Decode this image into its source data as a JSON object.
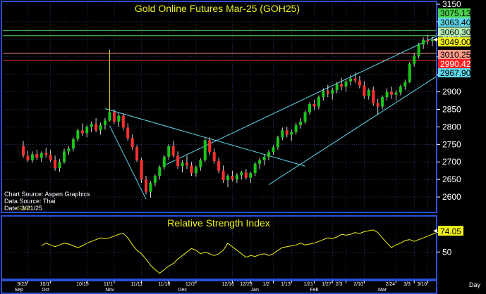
{
  "colors": {
    "background": "#000000",
    "frame": "#2a4fd6",
    "grid": "#3a4a8a",
    "up_candle": "#19c619",
    "down_candle": "#ff3030",
    "wick": "#d8d8d8",
    "channel": "#5fd7e8",
    "title": "#f2f21a",
    "axis_text": "#ffffff",
    "rsi_line": "#f2f21a",
    "spike": "#e8d830"
  },
  "chart_data": [
    {
      "type": "candlestick",
      "title": "Gold Online Futures Mar-25 (GOH25)",
      "ylim": [
        2560,
        3150
      ],
      "y_ticks": [
        2600,
        2650,
        2700,
        2750,
        2800,
        2850,
        2900,
        2950,
        3000,
        3050,
        3100,
        3150
      ],
      "x_ticks": [
        "9/23",
        "10/1",
        "10/15",
        "11/1",
        "11/11",
        "11/18",
        "12/2",
        "12/16",
        "12/23",
        "1/2",
        "1/13",
        "1/21",
        "1/27",
        "2/3",
        "2/10",
        "2/24",
        "3/3",
        "3/10"
      ],
      "month_labels": [
        "Sep",
        "Oct",
        "Nov",
        "Dec",
        "Jan",
        "Feb",
        "Mar"
      ],
      "x_axis_label": "Day",
      "levels": [
        {
          "label": "3075.13",
          "value": 3075.13,
          "line": "#4cd24c",
          "bg": "#4cd24c",
          "fg": "#000000"
        },
        {
          "label": "3063.40",
          "value": 3063.4,
          "line": "",
          "bg": "#5fd7e8",
          "fg": "#000000"
        },
        {
          "label": "3060.30",
          "value": 3060.3,
          "line": "#4cd24c",
          "bg": "#b8f0b8",
          "fg": "#000000"
        },
        {
          "label": "3049.00",
          "value": 3049.0,
          "line": "",
          "bg": "#f2f21a",
          "fg": "#000000"
        },
        {
          "label": "3010.25",
          "value": 3010.25,
          "line": "#ff9a8a",
          "bg": "#ff9a8a",
          "fg": "#000000"
        },
        {
          "label": "2990.42",
          "value": 2990.42,
          "line": "#ff3030",
          "bg": "#ff2020",
          "fg": "#ffffff"
        },
        {
          "label": "2967.90",
          "value": 2967.9,
          "line": "",
          "bg": "#5fd7e8",
          "fg": "#000000"
        }
      ],
      "source_notes": [
        "Chart Source: Aspen Graphics",
        "Data Source: Thai",
        "Date: 3/21/25"
      ],
      "watermark": "Gold",
      "candles": [
        [
          2745,
          2760,
          2712,
          2718
        ],
        [
          2718,
          2732,
          2700,
          2705
        ],
        [
          2705,
          2730,
          2698,
          2722
        ],
        [
          2722,
          2735,
          2705,
          2712
        ],
        [
          2712,
          2730,
          2700,
          2725
        ],
        [
          2725,
          2740,
          2712,
          2720
        ],
        [
          2720,
          2735,
          2700,
          2706
        ],
        [
          2706,
          2718,
          2675,
          2682
        ],
        [
          2682,
          2708,
          2672,
          2700
        ],
        [
          2700,
          2738,
          2695,
          2730
        ],
        [
          2730,
          2745,
          2720,
          2738
        ],
        [
          2738,
          2770,
          2730,
          2765
        ],
        [
          2765,
          2795,
          2758,
          2790
        ],
        [
          2790,
          2810,
          2775,
          2782
        ],
        [
          2782,
          2805,
          2770,
          2800
        ],
        [
          2800,
          2815,
          2785,
          2808
        ],
        [
          2808,
          2825,
          2785,
          2790
        ],
        [
          2790,
          2812,
          2778,
          2805
        ],
        [
          2805,
          2825,
          2792,
          2818
        ],
        [
          2818,
          3020,
          2815,
          2842
        ],
        [
          2842,
          2850,
          2808,
          2815
        ],
        [
          2815,
          2840,
          2800,
          2832
        ],
        [
          2832,
          2838,
          2790,
          2798
        ],
        [
          2798,
          2810,
          2760,
          2768
        ],
        [
          2768,
          2778,
          2735,
          2742
        ],
        [
          2742,
          2748,
          2700,
          2705
        ],
        [
          2705,
          2712,
          2640,
          2650
        ],
        [
          2650,
          2660,
          2608,
          2615
        ],
        [
          2615,
          2645,
          2598,
          2640
        ],
        [
          2640,
          2665,
          2630,
          2660
        ],
        [
          2660,
          2690,
          2650,
          2685
        ],
        [
          2685,
          2720,
          2678,
          2715
        ],
        [
          2715,
          2750,
          2705,
          2745
        ],
        [
          2745,
          2760,
          2712,
          2718
        ],
        [
          2718,
          2730,
          2680,
          2688
        ],
        [
          2688,
          2705,
          2670,
          2698
        ],
        [
          2698,
          2718,
          2680,
          2690
        ],
        [
          2690,
          2700,
          2660,
          2668
        ],
        [
          2668,
          2690,
          2658,
          2685
        ],
        [
          2685,
          2710,
          2675,
          2705
        ],
        [
          2705,
          2768,
          2700,
          2762
        ],
        [
          2762,
          2770,
          2720,
          2728
        ],
        [
          2728,
          2738,
          2695,
          2702
        ],
        [
          2702,
          2712,
          2668,
          2675
        ],
        [
          2675,
          2690,
          2640,
          2648
        ],
        [
          2648,
          2665,
          2628,
          2660
        ],
        [
          2660,
          2675,
          2645,
          2650
        ],
        [
          2650,
          2668,
          2640,
          2662
        ],
        [
          2662,
          2675,
          2650,
          2670
        ],
        [
          2670,
          2680,
          2650,
          2655
        ],
        [
          2655,
          2672,
          2640,
          2668
        ],
        [
          2668,
          2700,
          2660,
          2695
        ],
        [
          2695,
          2712,
          2680,
          2705
        ],
        [
          2705,
          2722,
          2690,
          2715
        ],
        [
          2715,
          2735,
          2705,
          2728
        ],
        [
          2728,
          2748,
          2720,
          2742
        ],
        [
          2742,
          2775,
          2735,
          2770
        ],
        [
          2770,
          2798,
          2762,
          2790
        ],
        [
          2790,
          2800,
          2770,
          2778
        ],
        [
          2778,
          2792,
          2760,
          2785
        ],
        [
          2785,
          2812,
          2778,
          2805
        ],
        [
          2805,
          2825,
          2795,
          2815
        ],
        [
          2815,
          2848,
          2808,
          2842
        ],
        [
          2842,
          2870,
          2835,
          2865
        ],
        [
          2865,
          2878,
          2848,
          2858
        ],
        [
          2858,
          2890,
          2850,
          2885
        ],
        [
          2885,
          2910,
          2875,
          2902
        ],
        [
          2902,
          2920,
          2885,
          2895
        ],
        [
          2895,
          2912,
          2878,
          2905
        ],
        [
          2905,
          2928,
          2896,
          2922
        ],
        [
          2922,
          2940,
          2905,
          2915
        ],
        [
          2915,
          2935,
          2900,
          2930
        ],
        [
          2930,
          2948,
          2918,
          2938
        ],
        [
          2938,
          2955,
          2925,
          2932
        ],
        [
          2932,
          2945,
          2910,
          2918
        ],
        [
          2918,
          2930,
          2880,
          2888
        ],
        [
          2888,
          2910,
          2878,
          2905
        ],
        [
          2905,
          2915,
          2860,
          2868
        ],
        [
          2868,
          2880,
          2835,
          2858
        ],
        [
          2858,
          2890,
          2850,
          2885
        ],
        [
          2885,
          2910,
          2875,
          2900
        ],
        [
          2900,
          2915,
          2880,
          2892
        ],
        [
          2892,
          2905,
          2875,
          2898
        ],
        [
          2898,
          2920,
          2890,
          2915
        ],
        [
          2915,
          2935,
          2905,
          2928
        ],
        [
          2928,
          2985,
          2925,
          2980
        ],
        [
          2980,
          3010,
          2972,
          3002
        ],
        [
          3002,
          3040,
          2995,
          3035
        ],
        [
          3035,
          3055,
          3022,
          3048
        ],
        [
          3048,
          3062,
          3035,
          3045
        ],
        [
          3045,
          3058,
          3030,
          3049
        ]
      ],
      "channels": [
        {
          "name": "downtrend-channel-upper",
          "points": [
            [
              18,
              2852
            ],
            [
              62,
              2688
            ]
          ]
        },
        {
          "name": "downtrend-channel-lower",
          "points": [
            [
              19,
              2803
            ],
            [
              27,
              2594
            ]
          ]
        },
        {
          "name": "uptrend-channel-upper",
          "points": [
            [
              31,
              2690
            ],
            [
              94,
              3078
            ]
          ]
        },
        {
          "name": "uptrend-channel-lower",
          "points": [
            [
              54,
              2635
            ],
            [
              94,
              2970
            ]
          ]
        }
      ]
    },
    {
      "type": "line",
      "title": "Relative Strength Index",
      "ylim": [
        20,
        90
      ],
      "y_ticks": [
        50
      ],
      "last_value_label": "74.05",
      "values": [
        57,
        60,
        58,
        56,
        58,
        60,
        59,
        57,
        55,
        57,
        60,
        62,
        64,
        66,
        65,
        66,
        68,
        70,
        71,
        66,
        58,
        52,
        48,
        42,
        35,
        30,
        26,
        30,
        34,
        37,
        42,
        46,
        50,
        54,
        52,
        48,
        50,
        48,
        46,
        48,
        52,
        60,
        56,
        52,
        48,
        44,
        46,
        45,
        47,
        48,
        46,
        48,
        52,
        55,
        56,
        57,
        58,
        60,
        58,
        59,
        60,
        62,
        64,
        66,
        65,
        67,
        70,
        69,
        70,
        72,
        71,
        73,
        74,
        75,
        72,
        66,
        60,
        55,
        58,
        60,
        63,
        64,
        62,
        64,
        66,
        68,
        70,
        72,
        73,
        72,
        74
      ]
    }
  ]
}
